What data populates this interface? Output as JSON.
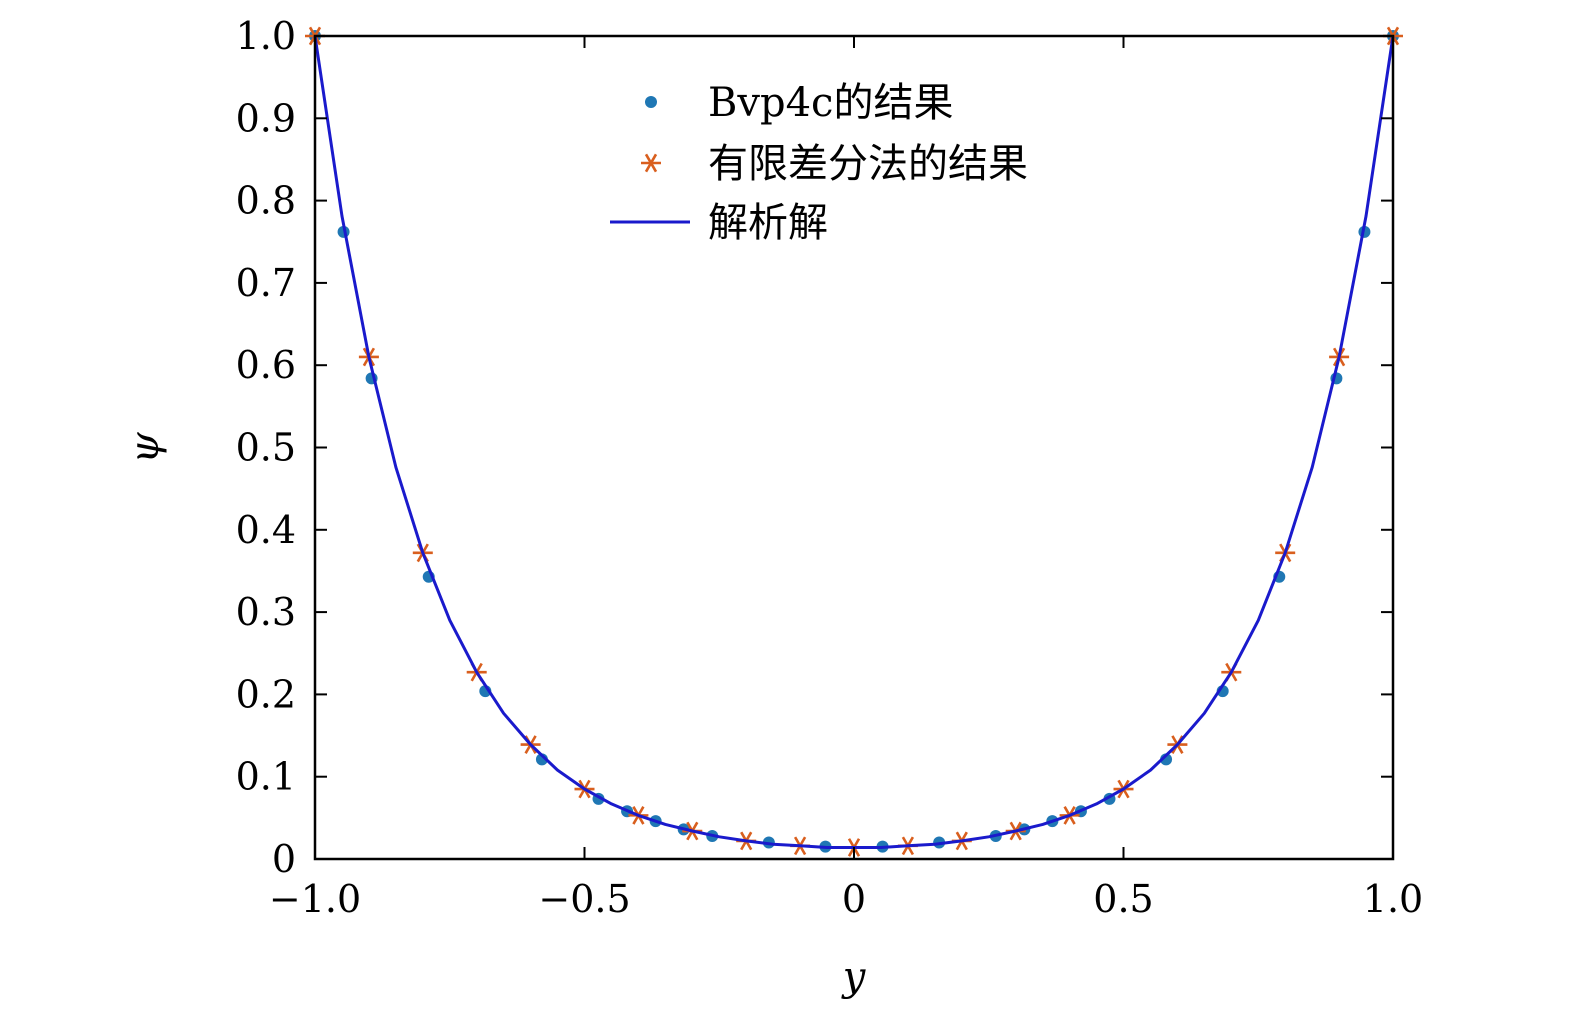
{
  "chart_data": {
    "type": "line",
    "xlabel": "y",
    "ylabel": "ψ",
    "xlim": [
      -1.0,
      1.0
    ],
    "ylim": [
      0,
      1.0
    ],
    "x_ticks": [
      -1.0,
      -0.5,
      0,
      0.5,
      1.0
    ],
    "x_tick_labels": [
      "−1.0",
      "−0.5",
      "0",
      "0.5",
      "1.0"
    ],
    "y_ticks": [
      0,
      0.1,
      0.2,
      0.3,
      0.4,
      0.5,
      0.6,
      0.7,
      0.8,
      0.9,
      1.0
    ],
    "y_tick_labels": [
      "0",
      "0.1",
      "0.2",
      "0.3",
      "0.4",
      "0.5",
      "0.6",
      "0.7",
      "0.8",
      "0.9",
      "1.0"
    ],
    "grid": false,
    "legend_position": "top-center",
    "series": [
      {
        "name": "Bvp4c的结果",
        "style": "dots",
        "color": "#1f77b4",
        "x": [
          -1.0,
          -0.947,
          -0.895,
          -0.789,
          -0.684,
          -0.579,
          -0.474,
          -0.421,
          -0.368,
          -0.316,
          -0.263,
          -0.158,
          -0.053,
          0.053,
          0.158,
          0.263,
          0.316,
          0.368,
          0.421,
          0.474,
          0.579,
          0.684,
          0.789,
          0.895,
          0.947,
          1.0
        ],
        "y": [
          1.0,
          0.762,
          0.584,
          0.343,
          0.204,
          0.121,
          0.073,
          0.058,
          0.046,
          0.036,
          0.028,
          0.02,
          0.015,
          0.015,
          0.02,
          0.028,
          0.036,
          0.046,
          0.058,
          0.073,
          0.121,
          0.204,
          0.343,
          0.584,
          0.762,
          1.0
        ]
      },
      {
        "name": "有限差分法的结果",
        "style": "stars",
        "color": "#d95f1e",
        "x": [
          -1.0,
          -0.9,
          -0.8,
          -0.7,
          -0.6,
          -0.5,
          -0.4,
          -0.3,
          -0.2,
          -0.1,
          0,
          0.1,
          0.2,
          0.3,
          0.4,
          0.5,
          0.6,
          0.7,
          0.8,
          0.9,
          1.0
        ],
        "y": [
          1.0,
          0.61,
          0.372,
          0.227,
          0.139,
          0.085,
          0.053,
          0.034,
          0.022,
          0.016,
          0.014,
          0.016,
          0.022,
          0.034,
          0.053,
          0.085,
          0.139,
          0.227,
          0.372,
          0.61,
          1.0
        ]
      },
      {
        "name": "解析解",
        "style": "line",
        "color": "#1a1acc",
        "x": [
          -1.0,
          -0.95,
          -0.9,
          -0.85,
          -0.8,
          -0.75,
          -0.7,
          -0.65,
          -0.6,
          -0.55,
          -0.5,
          -0.45,
          -0.4,
          -0.35,
          -0.3,
          -0.25,
          -0.2,
          -0.15,
          -0.1,
          -0.05,
          0,
          0.05,
          0.1,
          0.15,
          0.2,
          0.25,
          0.3,
          0.35,
          0.4,
          0.45,
          0.5,
          0.55,
          0.6,
          0.65,
          0.7,
          0.75,
          0.8,
          0.85,
          0.9,
          0.95,
          1.0
        ],
        "y": [
          1.0,
          0.781,
          0.61,
          0.476,
          0.372,
          0.29,
          0.227,
          0.177,
          0.139,
          0.108,
          0.085,
          0.067,
          0.053,
          0.042,
          0.034,
          0.027,
          0.022,
          0.018,
          0.016,
          0.014,
          0.014,
          0.014,
          0.016,
          0.018,
          0.022,
          0.027,
          0.034,
          0.042,
          0.053,
          0.067,
          0.085,
          0.108,
          0.139,
          0.177,
          0.227,
          0.29,
          0.372,
          0.476,
          0.61,
          0.781,
          1.0
        ]
      }
    ]
  }
}
